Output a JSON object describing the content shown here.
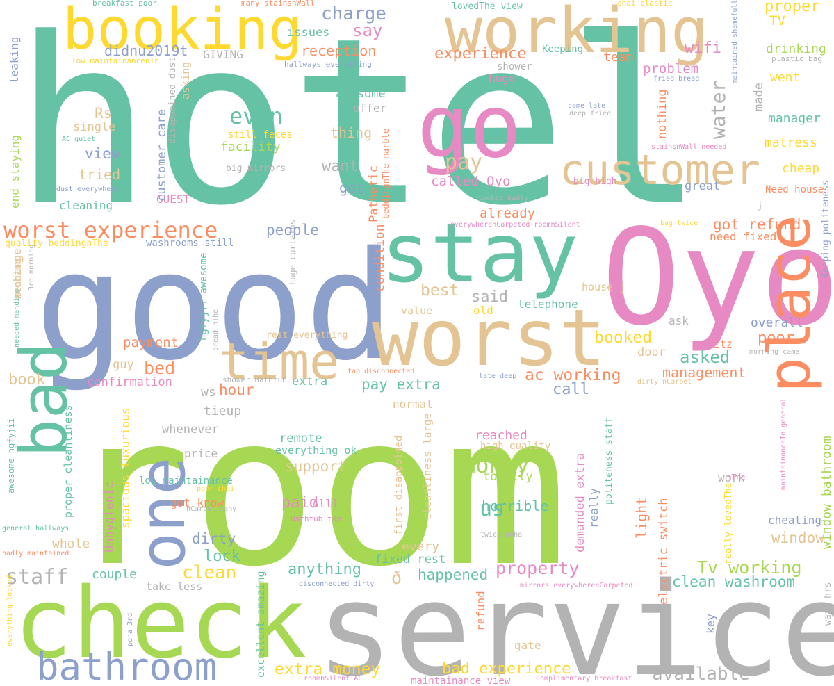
{
  "palette": {
    "teal": "#66c2a5",
    "orange": "#fc8d62",
    "blue": "#8da0cb",
    "pink": "#e78ac3",
    "green": "#a6d854",
    "yellow": "#ffd92f",
    "tan": "#e5c494",
    "gray": "#b3b3b3"
  },
  "words": [
    "hotel",
    "room",
    "service",
    "check",
    "good",
    "Oyo",
    "worst",
    "stay",
    "booking",
    "working",
    "go",
    "customer",
    "time",
    "place",
    "bad",
    "one",
    "bathroom",
    "money",
    "staff",
    "clean",
    "experience",
    "worst experience",
    "even",
    "water",
    "pay",
    "wifi",
    "charge",
    "say",
    "reception",
    "issues",
    "didnu2019t",
    "GIVING",
    "team",
    "TV",
    "proper",
    "drinking",
    "went",
    "made",
    "manager",
    "matress",
    "cheap",
    "great",
    "Need house",
    "problem",
    "huge",
    "offer",
    "thing",
    "want",
    "got",
    "called Oyo",
    "already",
    "awesome",
    "still feces",
    "facility",
    "big mirrors",
    "Rs",
    "single",
    "view",
    "tried",
    "cleaning",
    "GUEST",
    "customer care",
    "nothing",
    "got refund",
    "need fixed",
    "people",
    "washrooms still",
    "condition",
    "Pathetic",
    "best",
    "said",
    "old",
    "value",
    "telephone",
    "ask",
    "overall",
    "poor",
    "booked",
    "asked",
    "door",
    "itz",
    "management",
    "ac working",
    "call",
    "pay extra",
    "extra",
    "hour",
    "payment",
    "bed",
    "guy",
    "book",
    "confirmation",
    "tieup",
    "whenever",
    "price",
    "normal",
    "remote",
    "reached",
    "high quality",
    "support",
    "everything ok",
    "Alll",
    "paid",
    "us",
    "totally",
    "horrible",
    "light",
    "work",
    "window bathroom",
    "window",
    "cheating",
    "demanded extra",
    "really",
    "electric switch",
    "Tv working",
    "clean washroom",
    "property",
    "happened",
    "fixed rest",
    "anything",
    "every",
    "dirty",
    "lock",
    "got know",
    "low maintainance",
    "Unhygienic",
    "spacious luxurious",
    "proper cleanliness",
    "couple",
    "whole",
    "take less",
    "extra money",
    "bad experience",
    "available",
    "refund",
    "gate",
    "key",
    "wait hrs",
    "excellent amazing",
    "cleanliness large",
    "first disappoined",
    "breakfast poor",
    "many stainsnWall",
    "lovedThe view",
    "chai plastic",
    "low maintainancenIn",
    "hallways everything",
    "Keeping",
    "plastic bag",
    "maintained shamefully",
    "fried bread",
    "came late",
    "deep fried",
    "stainsnWall needed",
    "big high",
    "looked badly",
    "everywherenCarpeted roomnSilent",
    "bag twice",
    "Keeping politeness",
    "house j",
    "hgfyjii awesome",
    "bread nThe",
    "rest everything",
    "tap disconnected",
    "late deep",
    "dirty nCarpet",
    "morning came",
    "maintainanceIn general",
    "really lovedThe",
    "politeness staff",
    "poor chai",
    "nCarpet many",
    "twice poha",
    "Bathtub tap",
    "disconnected dirty",
    "mirrors everywherenCarpeted",
    "roomnSilent AC",
    "maintainance view",
    "Complimentary breakfast",
    "poha 3rd",
    "everything looked",
    "badly maintained",
    "general hallways",
    "awesome hgfyjii",
    "needed mending",
    "3rd morning",
    "change",
    "mending",
    "quality beddingnThe",
    "huge curtains",
    "beddingnThe marble",
    "asking",
    "disappoined dust",
    "AC quiet",
    "dust everywhere",
    "end staying",
    "leaking",
    "shower",
    "shower Bathtub",
    "ws",
    "nThe",
    "ð",
    "j"
  ]
}
